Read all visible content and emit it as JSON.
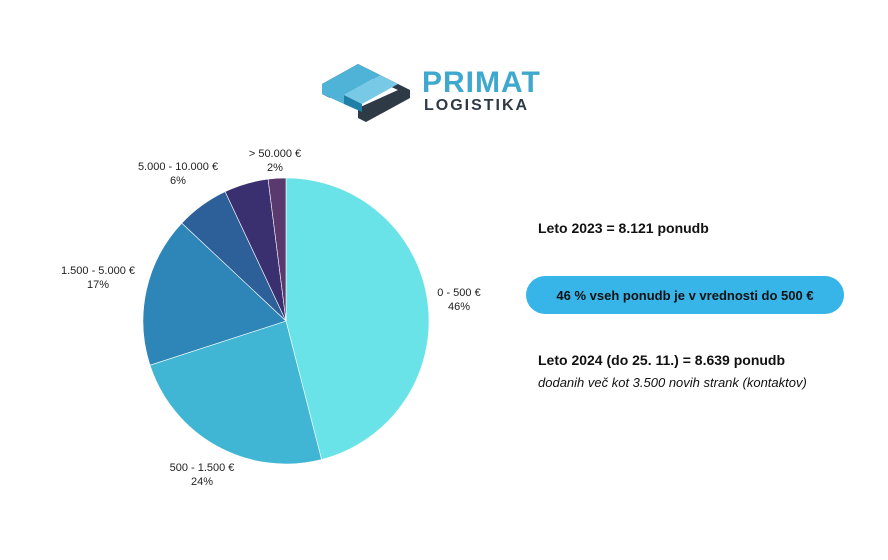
{
  "logo": {
    "line1": "PRIMAT",
    "line2": "LOGISTIKA",
    "colors": {
      "blue": "#3fa8cf",
      "dark": "#2e3a45",
      "light": "#5cc0e0"
    }
  },
  "chart_data": {
    "type": "pie",
    "categories": [
      "0 - 500 €",
      "500 - 1.500 €",
      "1.500 - 5.000 €",
      "5.000 - 10.000 €",
      "> 50.000 €"
    ],
    "values": [
      46,
      24,
      17,
      6,
      2
    ],
    "unlabeled_remainder": 5,
    "percent_labels": [
      "46%",
      "24%",
      "17%",
      "6%",
      "2%"
    ],
    "colors": [
      "#6ae3e8",
      "#41b6d4",
      "#2e86b8",
      "#2d5f98",
      "#2f2e66"
    ],
    "remainder_color": "#3a3070",
    "last_color": "#5a3a6e",
    "title": "",
    "legend": "none"
  },
  "info": {
    "year_2023": "Leto 2023 = 8.121 ponudb",
    "highlight": "46 % vseh ponudb je v vrednosti do 500 €",
    "highlight_color": "#37b4e8",
    "year_2024": "Leto 2024 (do 25. 11.) = 8.639 ponudb",
    "note": "dodanih več kot 3.500 novih strank (kontaktov)"
  }
}
